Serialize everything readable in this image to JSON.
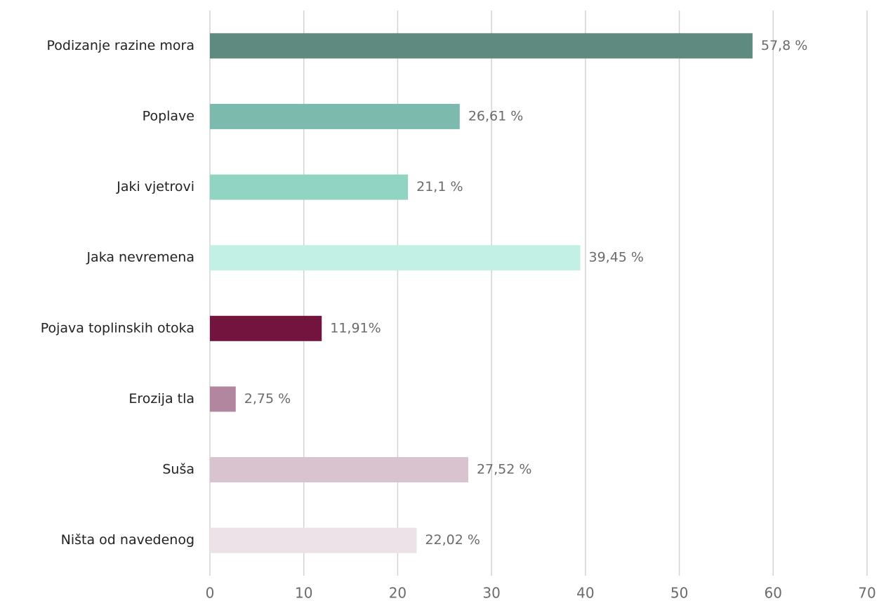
{
  "chart_data": {
    "type": "bar",
    "orientation": "horizontal",
    "categories": [
      "Podizanje razine mora",
      "Poplave",
      "Jaki vjetrovi",
      "Jaka nevremena",
      "Pojava toplinskih otoka",
      "Erozija tla",
      "Suša",
      "Ništa od navedenog"
    ],
    "values": [
      57.8,
      26.61,
      21.1,
      39.45,
      11.91,
      2.75,
      27.52,
      22.02
    ],
    "value_labels": [
      "57,8 %",
      "26,61 %",
      "21,1 %",
      "39,45 %",
      "11,91%",
      "2,75 %",
      "27,52 %",
      "22,02 %"
    ],
    "colors": [
      "#5e8a7f",
      "#7dbaae",
      "#92d4c3",
      "#c3f0e5",
      "#72143d",
      "#b386a0",
      "#d8c3cf",
      "#ede2e7"
    ],
    "xlim": [
      0,
      70
    ],
    "xticks": [
      0,
      10,
      20,
      30,
      40,
      50,
      60,
      70
    ],
    "grid": true
  }
}
